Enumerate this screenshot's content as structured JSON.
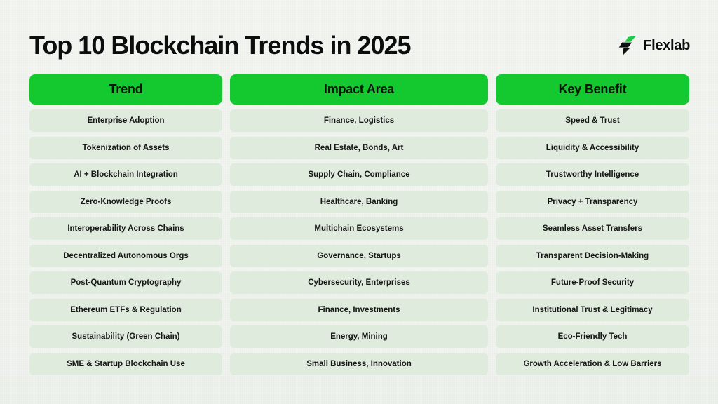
{
  "page": {
    "title": "Top 10 Blockchain Trends in 2025"
  },
  "brand": {
    "name": "Flexlab",
    "logo_icon": "flexlab-bolt-icon"
  },
  "colors": {
    "header_green": "#14c82f",
    "row_mint": "#dfebdc",
    "page_background": "#f2f4f0",
    "text_dark": "#0d0d0d",
    "logo_black": "#111111",
    "logo_green": "#1fc944"
  },
  "table": {
    "headers": [
      "Trend",
      "Impact Area",
      "Key Benefit"
    ],
    "rows": [
      {
        "trend": "Enterprise Adoption",
        "impact": "Finance, Logistics",
        "benefit": "Speed & Trust"
      },
      {
        "trend": "Tokenization of Assets",
        "impact": "Real Estate, Bonds, Art",
        "benefit": "Liquidity & Accessibility"
      },
      {
        "trend": "AI + Blockchain Integration",
        "impact": "Supply Chain, Compliance",
        "benefit": "Trustworthy Intelligence"
      },
      {
        "trend": "Zero-Knowledge Proofs",
        "impact": "Healthcare, Banking",
        "benefit": "Privacy + Transparency"
      },
      {
        "trend": "Interoperability Across Chains",
        "impact": "Multichain Ecosystems",
        "benefit": "Seamless Asset Transfers"
      },
      {
        "trend": "Decentralized Autonomous Orgs",
        "impact": "Governance, Startups",
        "benefit": "Transparent Decision-Making"
      },
      {
        "trend": "Post-Quantum Cryptography",
        "impact": "Cybersecurity, Enterprises",
        "benefit": "Future-Proof Security"
      },
      {
        "trend": "Ethereum ETFs & Regulation",
        "impact": "Finance, Investments",
        "benefit": "Institutional Trust & Legitimacy"
      },
      {
        "trend": "Sustainability (Green Chain)",
        "impact": "Energy, Mining",
        "benefit": "Eco-Friendly Tech"
      },
      {
        "trend": "SME & Startup Blockchain Use",
        "impact": "Small Business, Innovation",
        "benefit": "Growth Acceleration & Low Barriers"
      }
    ]
  }
}
